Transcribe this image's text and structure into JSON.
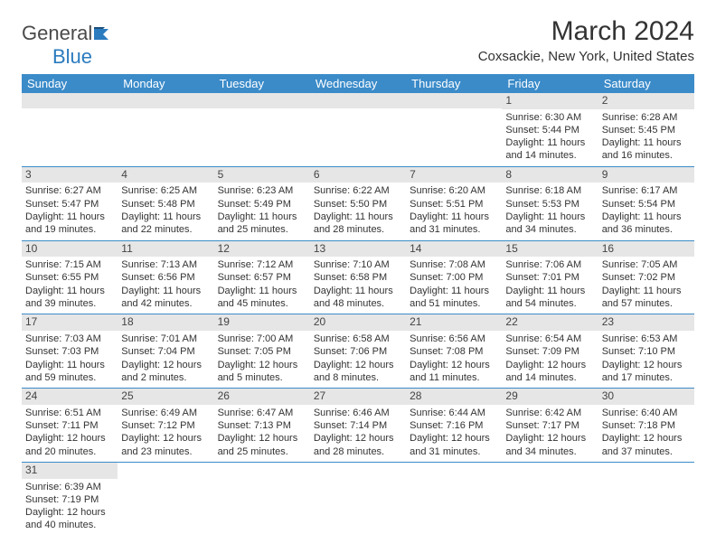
{
  "brand": {
    "name1": "General",
    "name2": "Blue"
  },
  "title": "March 2024",
  "subtitle": "Coxsackie, New York, United States",
  "header_bg": "#3b8bc9",
  "header_fg": "#ffffff",
  "daynum_bg": "#e6e6e6",
  "rule_color": "#3b8bc9",
  "fontsize_title": 30,
  "fontsize_subtitle": 15,
  "fontsize_header": 13,
  "fontsize_cell": 11,
  "days": [
    "Sunday",
    "Monday",
    "Tuesday",
    "Wednesday",
    "Thursday",
    "Friday",
    "Saturday"
  ],
  "weeks": [
    [
      null,
      null,
      null,
      null,
      null,
      {
        "n": "1",
        "sr": "6:30 AM",
        "ss": "5:44 PM",
        "dl": "11 hours and 14 minutes."
      },
      {
        "n": "2",
        "sr": "6:28 AM",
        "ss": "5:45 PM",
        "dl": "11 hours and 16 minutes."
      }
    ],
    [
      {
        "n": "3",
        "sr": "6:27 AM",
        "ss": "5:47 PM",
        "dl": "11 hours and 19 minutes."
      },
      {
        "n": "4",
        "sr": "6:25 AM",
        "ss": "5:48 PM",
        "dl": "11 hours and 22 minutes."
      },
      {
        "n": "5",
        "sr": "6:23 AM",
        "ss": "5:49 PM",
        "dl": "11 hours and 25 minutes."
      },
      {
        "n": "6",
        "sr": "6:22 AM",
        "ss": "5:50 PM",
        "dl": "11 hours and 28 minutes."
      },
      {
        "n": "7",
        "sr": "6:20 AM",
        "ss": "5:51 PM",
        "dl": "11 hours and 31 minutes."
      },
      {
        "n": "8",
        "sr": "6:18 AM",
        "ss": "5:53 PM",
        "dl": "11 hours and 34 minutes."
      },
      {
        "n": "9",
        "sr": "6:17 AM",
        "ss": "5:54 PM",
        "dl": "11 hours and 36 minutes."
      }
    ],
    [
      {
        "n": "10",
        "sr": "7:15 AM",
        "ss": "6:55 PM",
        "dl": "11 hours and 39 minutes."
      },
      {
        "n": "11",
        "sr": "7:13 AM",
        "ss": "6:56 PM",
        "dl": "11 hours and 42 minutes."
      },
      {
        "n": "12",
        "sr": "7:12 AM",
        "ss": "6:57 PM",
        "dl": "11 hours and 45 minutes."
      },
      {
        "n": "13",
        "sr": "7:10 AM",
        "ss": "6:58 PM",
        "dl": "11 hours and 48 minutes."
      },
      {
        "n": "14",
        "sr": "7:08 AM",
        "ss": "7:00 PM",
        "dl": "11 hours and 51 minutes."
      },
      {
        "n": "15",
        "sr": "7:06 AM",
        "ss": "7:01 PM",
        "dl": "11 hours and 54 minutes."
      },
      {
        "n": "16",
        "sr": "7:05 AM",
        "ss": "7:02 PM",
        "dl": "11 hours and 57 minutes."
      }
    ],
    [
      {
        "n": "17",
        "sr": "7:03 AM",
        "ss": "7:03 PM",
        "dl": "11 hours and 59 minutes."
      },
      {
        "n": "18",
        "sr": "7:01 AM",
        "ss": "7:04 PM",
        "dl": "12 hours and 2 minutes."
      },
      {
        "n": "19",
        "sr": "7:00 AM",
        "ss": "7:05 PM",
        "dl": "12 hours and 5 minutes."
      },
      {
        "n": "20",
        "sr": "6:58 AM",
        "ss": "7:06 PM",
        "dl": "12 hours and 8 minutes."
      },
      {
        "n": "21",
        "sr": "6:56 AM",
        "ss": "7:08 PM",
        "dl": "12 hours and 11 minutes."
      },
      {
        "n": "22",
        "sr": "6:54 AM",
        "ss": "7:09 PM",
        "dl": "12 hours and 14 minutes."
      },
      {
        "n": "23",
        "sr": "6:53 AM",
        "ss": "7:10 PM",
        "dl": "12 hours and 17 minutes."
      }
    ],
    [
      {
        "n": "24",
        "sr": "6:51 AM",
        "ss": "7:11 PM",
        "dl": "12 hours and 20 minutes."
      },
      {
        "n": "25",
        "sr": "6:49 AM",
        "ss": "7:12 PM",
        "dl": "12 hours and 23 minutes."
      },
      {
        "n": "26",
        "sr": "6:47 AM",
        "ss": "7:13 PM",
        "dl": "12 hours and 25 minutes."
      },
      {
        "n": "27",
        "sr": "6:46 AM",
        "ss": "7:14 PM",
        "dl": "12 hours and 28 minutes."
      },
      {
        "n": "28",
        "sr": "6:44 AM",
        "ss": "7:16 PM",
        "dl": "12 hours and 31 minutes."
      },
      {
        "n": "29",
        "sr": "6:42 AM",
        "ss": "7:17 PM",
        "dl": "12 hours and 34 minutes."
      },
      {
        "n": "30",
        "sr": "6:40 AM",
        "ss": "7:18 PM",
        "dl": "12 hours and 37 minutes."
      }
    ],
    [
      {
        "n": "31",
        "sr": "6:39 AM",
        "ss": "7:19 PM",
        "dl": "12 hours and 40 minutes."
      },
      null,
      null,
      null,
      null,
      null,
      null
    ]
  ],
  "labels": {
    "sunrise": "Sunrise:",
    "sunset": "Sunset:",
    "daylight": "Daylight:"
  }
}
